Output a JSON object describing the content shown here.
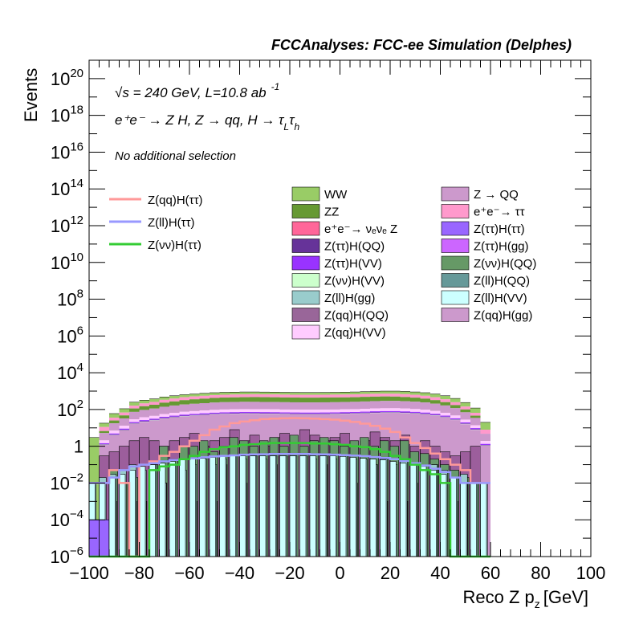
{
  "chart_data": {
    "type": "bar",
    "title": "FCCAnalyses: FCC-ee Simulation (Delphes)",
    "xlabel": "Reco Z p_z [GeV]",
    "xlabel_main": "Reco Z p",
    "xlabel_sub": "z",
    "xlabel_unit": "[GeV]",
    "ylabel": "Events",
    "yscale": "log",
    "xlim": [
      -100,
      100
    ],
    "ylim": [
      1e-06,
      1e+21
    ],
    "x_ticks": [
      "−100",
      "−80",
      "−60",
      "−40",
      "−20",
      "0",
      "20",
      "40",
      "60",
      "80",
      "100"
    ],
    "y_ticks": [
      {
        "base": "10",
        "exp": "−6",
        "value": 1e-06
      },
      {
        "base": "10",
        "exp": "−4",
        "value": 0.0001
      },
      {
        "base": "10",
        "exp": "−2",
        "value": 0.01
      },
      {
        "base": "1",
        "exp": "",
        "value": 1
      },
      {
        "base": "10",
        "exp": "2",
        "value": 100.0
      },
      {
        "base": "10",
        "exp": "4",
        "value": 10000.0
      },
      {
        "base": "10",
        "exp": "6",
        "value": 1000000.0
      },
      {
        "base": "10",
        "exp": "8",
        "value": 100000000.0
      },
      {
        "base": "10",
        "exp": "10",
        "value": 10000000000.0
      },
      {
        "base": "10",
        "exp": "12",
        "value": 1000000000000.0
      },
      {
        "base": "10",
        "exp": "14",
        "value": 100000000000000.0
      },
      {
        "base": "10",
        "exp": "16",
        "value": 1e+16
      },
      {
        "base": "10",
        "exp": "18",
        "value": 1e+18
      },
      {
        "base": "10",
        "exp": "20",
        "value": 1e+20
      }
    ],
    "annotations": {
      "line1_sqrt": "√s",
      "line1_rest": " = 240 GeV, L=10.8 ab",
      "line1_sup": "-1",
      "line2": "e⁺e⁻ → Z H, Z → qq, H → τ",
      "line2_sub1": "L",
      "line2_tau2": "τ",
      "line2_sub2": "h",
      "line3": "No additional selection"
    },
    "legend_position": "top",
    "bin_edges_start": -100,
    "bin_width": 4,
    "stack_totals": [
      3.0,
      18,
      60,
      110,
      250,
      320,
      380,
      480,
      560,
      640,
      700,
      760,
      820,
      860,
      880,
      900,
      900,
      890,
      880,
      860,
      850,
      840,
      840,
      850,
      860,
      880,
      900,
      940,
      980,
      1000,
      1000,
      960,
      900,
      820,
      700,
      560,
      400,
      240,
      120,
      20
    ],
    "stack_layers": [
      {
        "name": "WW",
        "color": "#99cc66",
        "fractions": [
          1.0,
          0.38,
          0.4,
          0.38,
          0.35,
          0.33,
          0.32,
          0.3,
          0.3,
          0.28,
          0.27,
          0.27,
          0.26,
          0.26,
          0.26,
          0.26,
          0.25,
          0.25,
          0.25,
          0.25,
          0.25,
          0.25,
          0.25,
          0.25,
          0.25,
          0.26,
          0.26,
          0.26,
          0.27,
          0.27,
          0.28,
          0.29,
          0.3,
          0.32,
          0.34,
          0.36,
          0.38,
          0.4,
          0.45,
          0.6
        ]
      },
      {
        "name": "e⁺e⁻→ ττ",
        "color": "#ff99cc",
        "fractions": [
          0,
          0.4,
          0.3,
          0.3,
          0.3,
          0.3,
          0.3,
          0.3,
          0.3,
          0.3,
          0.3,
          0.3,
          0.3,
          0.3,
          0.3,
          0.3,
          0.3,
          0.3,
          0.3,
          0.3,
          0.3,
          0.3,
          0.3,
          0.3,
          0.3,
          0.3,
          0.3,
          0.3,
          0.3,
          0.3,
          0.3,
          0.3,
          0.3,
          0.3,
          0.3,
          0.3,
          0.3,
          0.3,
          0.3,
          0.4
        ]
      },
      {
        "name": "ZZ",
        "color": "#669933",
        "fractions": [
          0,
          0.22,
          0.3,
          0.32,
          0.35,
          0.37,
          0.38,
          0.4,
          0.4,
          0.42,
          0.43,
          0.43,
          0.44,
          0.44,
          0.44,
          0.44,
          0.45,
          0.45,
          0.45,
          0.45,
          0.45,
          0.45,
          0.45,
          0.45,
          0.45,
          0.44,
          0.44,
          0.44,
          0.43,
          0.43,
          0.42,
          0.41,
          0.4,
          0.38,
          0.36,
          0.34,
          0.32,
          0.3,
          0.25,
          0.0
        ]
      }
    ],
    "series": [
      {
        "name": "Z(qq)H(ττ)",
        "color": "#ff9999",
        "type": "step",
        "values": [
          0.01,
          0.01,
          0.05,
          0.01,
          1e-06,
          0.1,
          0.15,
          0.3,
          0.5,
          1.0,
          2.0,
          4.0,
          8.0,
          12.0,
          18.0,
          22.0,
          26.0,
          30.0,
          32.0,
          33.0,
          34.0,
          33.0,
          32.0,
          30.0,
          28.0,
          25.0,
          21.0,
          17.0,
          13.0,
          9.0,
          6.0,
          3.0,
          1.5,
          0.8,
          0.4,
          0.2,
          0.1,
          0.05,
          0.01,
          0.01
        ]
      },
      {
        "name": "Z(ll)H(ττ)",
        "color": "#9999ff",
        "type": "step",
        "values": [
          0.01,
          0.01,
          0.02,
          0.05,
          0.08,
          0.1,
          0.12,
          0.15,
          0.18,
          0.2,
          0.22,
          0.25,
          0.28,
          0.3,
          0.32,
          0.35,
          0.36,
          0.37,
          0.38,
          0.38,
          0.38,
          0.38,
          0.37,
          0.36,
          0.35,
          0.33,
          0.31,
          0.29,
          0.26,
          0.23,
          0.2,
          0.16,
          0.12,
          0.09,
          0.06,
          0.04,
          0.02,
          0.01,
          0.01,
          0.01
        ]
      },
      {
        "name": "Z(νν)H(ττ)",
        "color": "#33cc33",
        "type": "step",
        "values": [
          1e-06,
          1e-06,
          1e-06,
          1e-06,
          1e-06,
          1e-06,
          0.05,
          0.08,
          0.1,
          0.2,
          0.3,
          0.5,
          0.7,
          0.9,
          1.0,
          1.2,
          1.3,
          1.4,
          1.5,
          1.5,
          1.5,
          1.5,
          1.4,
          1.4,
          1.3,
          1.2,
          1.0,
          0.9,
          0.7,
          0.5,
          0.3,
          0.2,
          0.1,
          0.05,
          0.03,
          0.01,
          1e-06,
          1e-06,
          1e-06,
          1e-06
        ]
      }
    ],
    "column_fill": [
      {
        "color": "#9c5e9c",
        "values": [
          1e-06,
          0.3,
          0.5,
          1,
          2,
          3,
          2,
          1,
          2,
          3,
          5,
          1,
          2,
          3,
          8,
          2,
          4,
          1,
          3,
          5,
          1e-06,
          8,
          4,
          2,
          3,
          5,
          1,
          2,
          6,
          3,
          2,
          4,
          1,
          2,
          1,
          0.5,
          0.3,
          0.5,
          1,
          1e-06
        ]
      },
      {
        "color": "#66996b",
        "values": [
          1e-06,
          1e-06,
          0.05,
          0.01,
          0.02,
          1e-06,
          0.1,
          1,
          0.2,
          1,
          1,
          2,
          0.5,
          1,
          3,
          2,
          1,
          2,
          3,
          1,
          4,
          1,
          2,
          3,
          2,
          1,
          2,
          3,
          1,
          2,
          1,
          2,
          0.5,
          0.4,
          0.2,
          0.1,
          0.05,
          0.02,
          0.01,
          1e-06
        ]
      },
      {
        "color": "#ff6699",
        "values": [
          1e-06,
          1e-06,
          0.001,
          1e-06,
          0.001,
          0.001,
          1e-06,
          0.01,
          1e-06,
          1e-06,
          0.001,
          1e-06,
          0.001,
          0.1,
          1e-06,
          0.01,
          1e-06,
          1e-06,
          0.1,
          1e-06,
          1e-06,
          1e-06,
          1e-06,
          0.1,
          1e-06,
          1e-06,
          0.01,
          1e-06,
          0.1,
          0.001,
          1e-06,
          0.001,
          0.01,
          1e-06,
          0.1,
          1e-06,
          0.001,
          0.01,
          1e-06,
          1e-06
        ]
      },
      {
        "color": "#99cccc",
        "values": [
          0.01,
          0.02,
          0.03,
          0.05,
          0.1,
          0.05,
          0.1,
          0.01,
          0.1,
          0.05,
          0.1,
          0.2,
          0.1,
          0.2,
          0.3,
          0.2,
          0.3,
          0.2,
          0.3,
          0.3,
          0.3,
          0.3,
          0.2,
          0.3,
          0.2,
          0.3,
          0.2,
          0.2,
          0.1,
          0.2,
          0.1,
          0.2,
          0.1,
          0.05,
          0.1,
          0.05,
          0.02,
          0.03,
          0.01,
          0.01
        ]
      },
      {
        "color": "#ccffff",
        "values": [
          0.01,
          0.01,
          0.02,
          0.03,
          0.05,
          0.08,
          0.1,
          0.12,
          0.15,
          0.18,
          0.2,
          0.22,
          0.25,
          0.28,
          0.3,
          0.3,
          0.3,
          0.3,
          0.3,
          0.3,
          0.3,
          0.3,
          0.3,
          0.3,
          0.3,
          0.28,
          0.25,
          0.22,
          0.2,
          0.18,
          0.15,
          0.12,
          0.1,
          0.08,
          0.05,
          0.03,
          0.02,
          0.01,
          0.01,
          0.01
        ]
      },
      {
        "color": "#9966ff",
        "values": [
          0.0001,
          0.0001,
          1e-06,
          1e-06,
          1e-06,
          1e-06,
          1e-06,
          1e-06,
          1e-06,
          1e-06,
          1e-06,
          1e-06,
          1e-06,
          1e-06,
          1e-06,
          1e-06,
          1e-06,
          1e-06,
          1e-06,
          1e-06,
          1e-06,
          1e-06,
          1e-06,
          1e-06,
          1e-06,
          1e-06,
          1e-06,
          1e-06,
          1e-06,
          1e-06,
          1e-06,
          1e-06,
          1e-06,
          1e-06,
          1e-06,
          1e-06,
          1e-06,
          1e-06,
          1e-06,
          1e-06
        ]
      }
    ],
    "upper_bands": [
      {
        "color": "#cc99cc",
        "frac": 0.06
      },
      {
        "color": "#ffccff",
        "frac": 0.03
      },
      {
        "color": "#9933ff",
        "frac": 0.012
      },
      {
        "color": "#663399",
        "frac": 0.006
      },
      {
        "color": "#ccffcc",
        "frac": 0.003
      }
    ],
    "legend_lines": [
      {
        "name": "Z(qq)H(ττ)",
        "color": "#ff9999"
      },
      {
        "name": "Z(ll)H(ττ)",
        "color": "#9999ff"
      },
      {
        "name": "Z(νν)H(ττ)",
        "color": "#33cc33"
      }
    ],
    "legend_col1": [
      {
        "name": "WW",
        "color": "#99cc66"
      },
      {
        "name": "ZZ",
        "color": "#669933"
      },
      {
        "name": "e⁺e⁻→ νₑνₑ Z",
        "color": "#ff6699"
      },
      {
        "name": "Z(ττ)H(QQ)",
        "color": "#663399"
      },
      {
        "name": "Z(ττ)H(VV)",
        "color": "#9933ff"
      },
      {
        "name": "Z(νν)H(VV)",
        "color": "#ccffcc"
      },
      {
        "name": "Z(ll)H(gg)",
        "color": "#99cccc"
      },
      {
        "name": "Z(qq)H(QQ)",
        "color": "#996699"
      },
      {
        "name": "Z(qq)H(VV)",
        "color": "#ffccff"
      }
    ],
    "legend_col2": [
      {
        "name": "Z → QQ",
        "color": "#cc99cc"
      },
      {
        "name": "e⁺e⁻→ ττ",
        "color": "#ff99cc"
      },
      {
        "name": "Z(ττ)H(ττ)",
        "color": "#9966ff"
      },
      {
        "name": "Z(ττ)H(gg)",
        "color": "#cc66ff"
      },
      {
        "name": "Z(νν)H(QQ)",
        "color": "#669966"
      },
      {
        "name": "Z(ll)H(QQ)",
        "color": "#669999"
      },
      {
        "name": "Z(ll)H(VV)",
        "color": "#ccffff"
      },
      {
        "name": "Z(qq)H(gg)",
        "color": "#cc99cc"
      }
    ]
  }
}
